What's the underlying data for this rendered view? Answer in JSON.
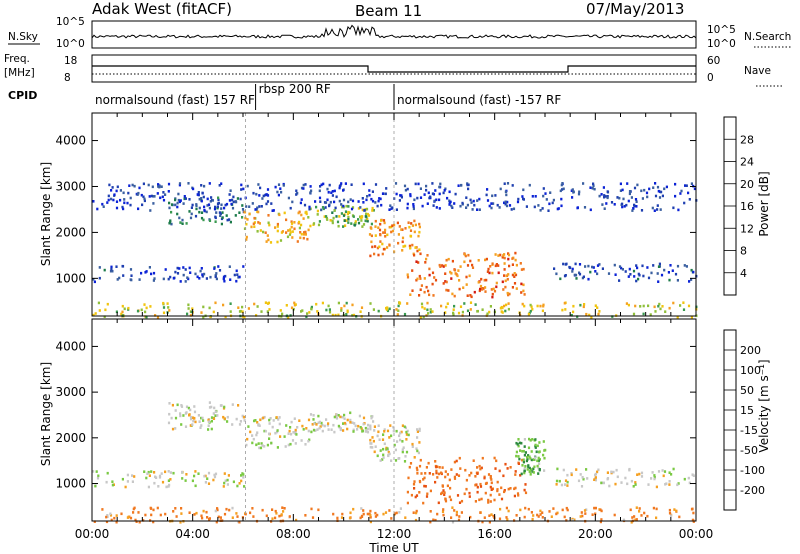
{
  "header": {
    "left": "Adak West (fitACF)",
    "center": "Beam 11",
    "right": "07/May/2013"
  },
  "top_panels": {
    "nsky_label": "N.Sky",
    "nsearch_label": "N.Search",
    "nsky_ticks": [
      "10^5",
      "10^0"
    ],
    "nsearch_ticks": [
      "10^5",
      "10^0"
    ],
    "freq_label_1": "Freq.",
    "freq_label_2": "[MHz]",
    "freq_ticks": [
      "18",
      "8"
    ],
    "nave_ticks": [
      "60",
      "0"
    ],
    "nave_label": "Nave",
    "cpid_label": "CPID",
    "cpid_segments": [
      {
        "label": "normalsound (fast) 157 RF",
        "start_h": 0,
        "end_h": 6.5
      },
      {
        "label": "rbsp 200 RF",
        "start_h": 6.5,
        "end_h": 12.0
      },
      {
        "label": "normalsound (fast) -157 RF",
        "start_h": 12.0,
        "end_h": 24
      }
    ]
  },
  "chart_data": [
    {
      "type": "heatmap",
      "title": "",
      "xlabel": "",
      "ylabel": "Slant Range [km]",
      "xlim": [
        0,
        24
      ],
      "ylim": [
        180,
        4600
      ],
      "yticks": [
        1000,
        2000,
        3000,
        4000
      ],
      "colorbar": {
        "label": "Power [dB]",
        "ticks": [
          "4",
          "8",
          "12",
          "16",
          "20",
          "24",
          "28"
        ],
        "range": [
          0,
          32
        ]
      },
      "regions": [
        {
          "name": "ground-scatter-band",
          "x": [
            0,
            6
          ],
          "y": [
            950,
            1300
          ],
          "value": 5
        },
        {
          "name": "arc-a",
          "x": [
            3.0,
            6.0
          ],
          "y": [
            2200,
            2800
          ],
          "value": 8
        },
        {
          "name": "arc-b",
          "x": [
            6.0,
            8.6
          ],
          "y": [
            1800,
            2500
          ],
          "value": 22
        },
        {
          "name": "arc-c",
          "x": [
            8.6,
            11.2
          ],
          "y": [
            2150,
            2600
          ],
          "value": 16
        },
        {
          "name": "arc-d",
          "x": [
            11.0,
            13.0
          ],
          "y": [
            1500,
            2300
          ],
          "value": 24
        },
        {
          "name": "main-echo",
          "x": [
            12.5,
            17.2
          ],
          "y": [
            600,
            1600
          ],
          "value": 26
        },
        {
          "name": "late-band",
          "x": [
            18.3,
            24
          ],
          "y": [
            950,
            1350
          ],
          "value": 5
        },
        {
          "name": "far-scatter",
          "x": [
            0,
            24
          ],
          "y": [
            2500,
            3100
          ],
          "value": 4
        },
        {
          "name": "near-range-noise",
          "x": [
            0,
            24
          ],
          "y": [
            180,
            500
          ],
          "value": 18
        }
      ]
    },
    {
      "type": "heatmap",
      "title": "",
      "xlabel": "Time UT",
      "ylabel": "Slant Range [km]",
      "xlim": [
        0,
        24
      ],
      "ylim": [
        180,
        4600
      ],
      "yticks": [
        1000,
        2000,
        3000,
        4000
      ],
      "xticks": [
        "00:00",
        "04:00",
        "08:00",
        "12:00",
        "16:00",
        "20:00",
        "00:00"
      ],
      "colorbar": {
        "label": "Velocity [m s⁻¹]",
        "ticks": [
          "200",
          "100",
          "50",
          "15",
          "-15",
          "-50",
          "-100",
          "-200"
        ],
        "range": [
          -250,
          250
        ]
      },
      "regions": [
        {
          "name": "ground-scatter-band",
          "x": [
            0,
            6
          ],
          "y": [
            950,
            1300
          ],
          "value": 0
        },
        {
          "name": "arc-a",
          "x": [
            3.0,
            6.0
          ],
          "y": [
            2200,
            2800
          ],
          "value": 0
        },
        {
          "name": "arc-b",
          "x": [
            6.0,
            8.6
          ],
          "y": [
            1800,
            2500
          ],
          "value": 0
        },
        {
          "name": "arc-c",
          "x": [
            8.6,
            11.2
          ],
          "y": [
            2150,
            2600
          ],
          "value": 0
        },
        {
          "name": "arc-d",
          "x": [
            11.0,
            13.0
          ],
          "y": [
            1500,
            2300
          ],
          "value": 0
        },
        {
          "name": "main-echo",
          "x": [
            12.5,
            17.2
          ],
          "y": [
            600,
            1600
          ],
          "value": -60
        },
        {
          "name": "late-band",
          "x": [
            18.3,
            24
          ],
          "y": [
            950,
            1350
          ],
          "value": 0
        },
        {
          "name": "green-patches",
          "x": [
            16.8,
            18.0
          ],
          "y": [
            1200,
            2000
          ],
          "value": 40
        },
        {
          "name": "near-range-noise",
          "x": [
            0,
            24
          ],
          "y": [
            180,
            500
          ],
          "value": -40
        }
      ]
    }
  ]
}
